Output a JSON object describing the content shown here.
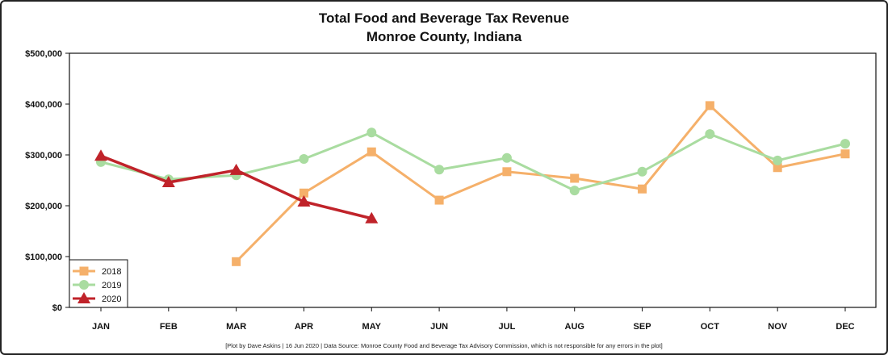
{
  "chart_data": {
    "type": "line",
    "title": "Total Food and Beverage Tax Revenue",
    "subtitle": "Monroe County, Indiana",
    "categories": [
      "JAN",
      "FEB",
      "MAR",
      "APR",
      "MAY",
      "JUN",
      "JUL",
      "AUG",
      "SEP",
      "OCT",
      "NOV",
      "DEC"
    ],
    "ylim": [
      0,
      500000
    ],
    "yticks": [
      0,
      100000,
      200000,
      300000,
      400000,
      500000
    ],
    "ytick_labels": [
      "$0",
      "$100,000",
      "$200,000",
      "$300,000",
      "$400,000",
      "$500,000"
    ],
    "grid": false,
    "legend_position": "bottom-left",
    "series": [
      {
        "name": "2018",
        "color": "#f5b06a",
        "marker": "square",
        "values": [
          null,
          null,
          90000,
          225000,
          306000,
          211000,
          267000,
          254000,
          233000,
          397000,
          275000,
          302000
        ]
      },
      {
        "name": "2019",
        "color": "#a9dca0",
        "marker": "circle",
        "values": [
          286000,
          252000,
          260000,
          292000,
          344000,
          271000,
          294000,
          230000,
          267000,
          341000,
          289000,
          322000
        ]
      },
      {
        "name": "2020",
        "color": "#c0232a",
        "marker": "triangle",
        "values": [
          298000,
          246000,
          270000,
          208000,
          175000,
          null,
          null,
          null,
          null,
          null,
          null,
          null
        ]
      }
    ],
    "footnote": "[Plot by Dave Askins | 16 Jun 2020 | Data Source: Monroe County Food and Beverage Tax Advisory Commission, which is not responsible for any errors in the plot]"
  }
}
